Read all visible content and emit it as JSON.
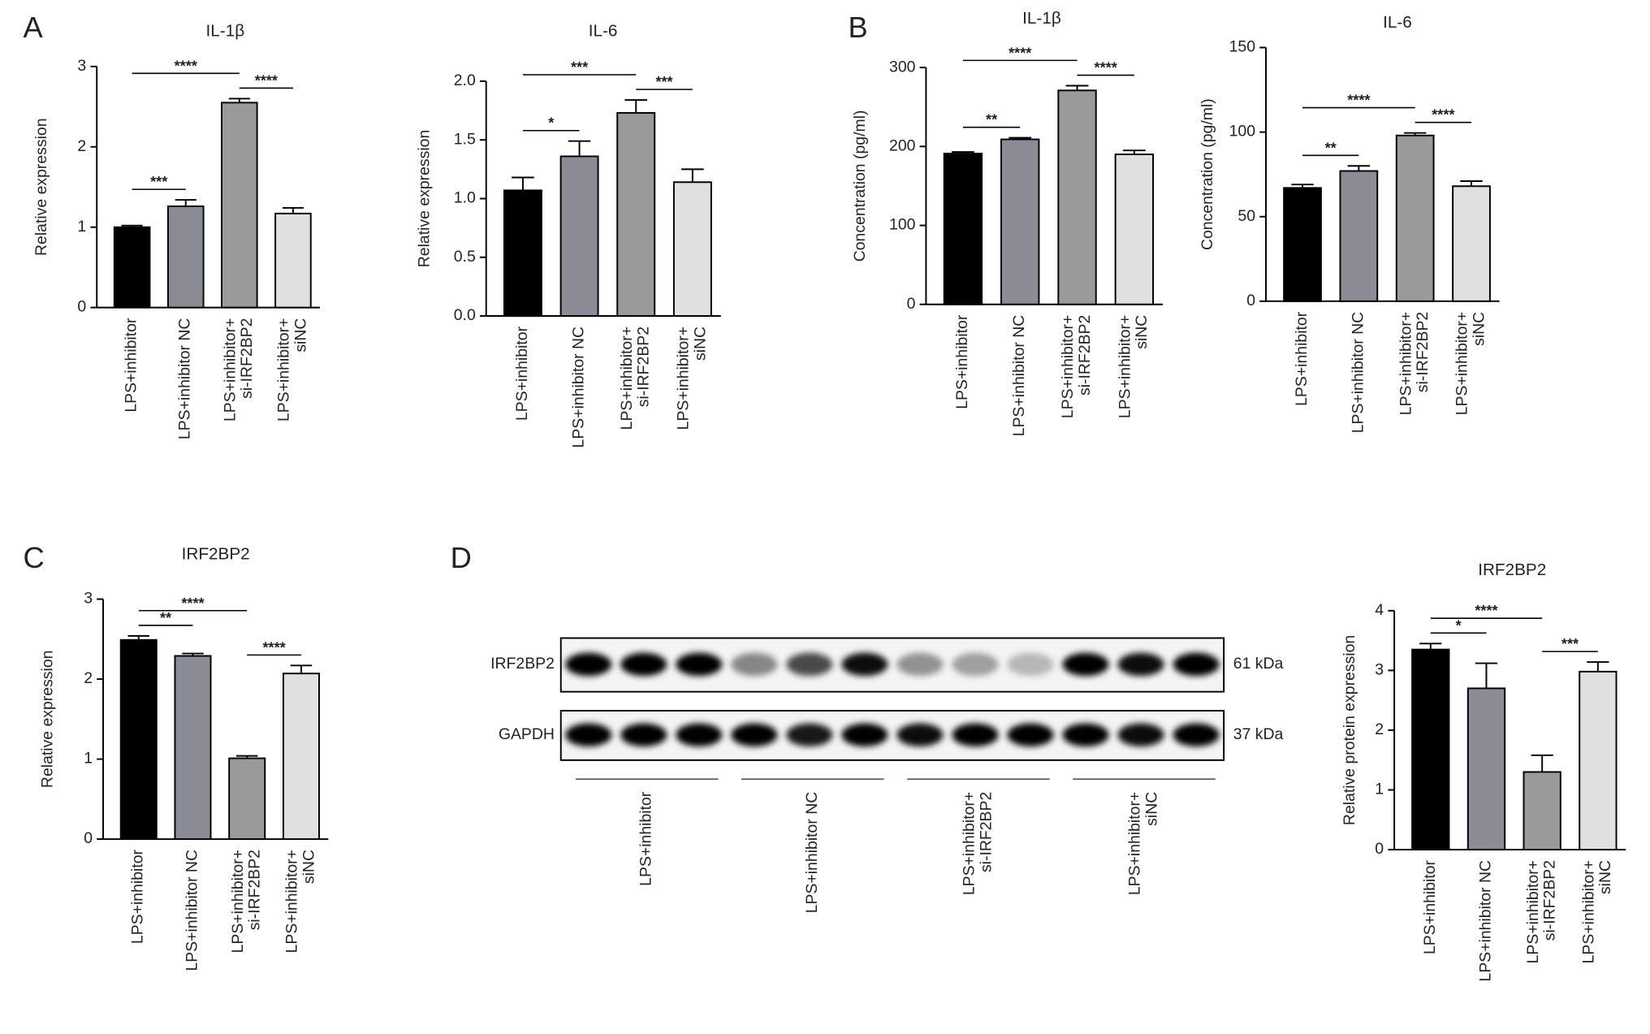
{
  "panel_labels": [
    "A",
    "B",
    "C",
    "D"
  ],
  "chart_data": [
    {
      "type": "bar",
      "title": "IL-1β",
      "ylabel": "Relative expression",
      "categories": [
        "LPS+inhibitor",
        "LPS+inhibitor NC",
        "LPS+inhibitor+\nsi-IRF2BP2",
        "LPS+inhibitor+\nsiNC"
      ],
      "values": [
        1.0,
        1.26,
        2.55,
        1.17
      ],
      "errors": [
        0.02,
        0.08,
        0.05,
        0.07
      ],
      "colors": [
        "#000000",
        "#8c8c96",
        "#9a9a9a",
        "#e0e0e0"
      ],
      "ylim": [
        0,
        3
      ],
      "yticks": [
        0,
        1,
        2,
        3
      ],
      "significance": [
        {
          "from": 0,
          "to": 1,
          "label": "***"
        },
        {
          "from": 0,
          "to": 2,
          "label": "****"
        },
        {
          "from": 2,
          "to": 3,
          "label": "****"
        }
      ]
    },
    {
      "type": "bar",
      "title": "IL-6",
      "ylabel": "Relative expression",
      "categories": [
        "LPS+inhibitor",
        "LPS+inhibitor NC",
        "LPS+inhibitor+\nsi-IRF2BP2",
        "LPS+inhibitor+\nsiNC"
      ],
      "values": [
        1.07,
        1.36,
        1.73,
        1.14
      ],
      "errors": [
        0.11,
        0.13,
        0.11,
        0.11
      ],
      "colors": [
        "#000000",
        "#8c8c96",
        "#9a9a9a",
        "#e0e0e0"
      ],
      "ylim": [
        0,
        2
      ],
      "yticks": [
        {
          "value": 0,
          "label": "0.0"
        },
        0.5,
        {
          "value": 1,
          "label": "1.0"
        },
        1.5,
        {
          "value": 2,
          "label": "2.0"
        }
      ],
      "significance": [
        {
          "from": 0,
          "to": 1,
          "label": "*"
        },
        {
          "from": 0,
          "to": 2,
          "label": "***"
        },
        {
          "from": 2,
          "to": 3,
          "label": "***"
        }
      ]
    },
    {
      "type": "bar",
      "title": "IL-1β",
      "ylabel": "Concentration (pg/ml)",
      "categories": [
        "LPS+inhibitor",
        "LPS+inhibitor NC",
        "LPS+inhibitor+\nsi-IRF2BP2",
        "LPS+inhibitor+\nsiNC"
      ],
      "values": [
        191,
        209,
        271,
        190
      ],
      "errors": [
        2,
        2,
        6,
        5
      ],
      "colors": [
        "#000000",
        "#8c8c96",
        "#9a9a9a",
        "#e0e0e0"
      ],
      "ylim": [
        0,
        300
      ],
      "yticks": [
        0,
        100,
        200,
        300
      ],
      "significance": [
        {
          "from": 0,
          "to": 1,
          "label": "**"
        },
        {
          "from": 0,
          "to": 2,
          "label": "****"
        },
        {
          "from": 2,
          "to": 3,
          "label": "****"
        }
      ]
    },
    {
      "type": "bar",
      "title": "IL-6",
      "ylabel": "Concentration (pg/ml)",
      "categories": [
        "LPS+inhibitor",
        "LPS+inhibitor NC",
        "LPS+inhibitor+\nsi-IRF2BP2",
        "LPS+inhibitor+\nsiNC"
      ],
      "values": [
        67,
        77,
        98,
        68
      ],
      "errors": [
        2,
        3,
        1.5,
        3
      ],
      "colors": [
        "#000000",
        "#8c8c96",
        "#9a9a9a",
        "#e0e0e0"
      ],
      "ylim": [
        0,
        150
      ],
      "yticks": [
        0,
        50,
        100,
        150
      ],
      "significance": [
        {
          "from": 0,
          "to": 1,
          "label": "**"
        },
        {
          "from": 0,
          "to": 2,
          "label": "****"
        },
        {
          "from": 2,
          "to": 3,
          "label": "****"
        }
      ]
    },
    {
      "type": "bar",
      "title": "IRF2BP2",
      "ylabel": "Relative expression",
      "categories": [
        "LPS+inhibitor",
        "LPS+inhibitor NC",
        "LPS+inhibitor+\nsi-IRF2BP2",
        "LPS+inhibitor+\nsiNC"
      ],
      "values": [
        2.49,
        2.29,
        1.01,
        2.07
      ],
      "errors": [
        0.05,
        0.03,
        0.03,
        0.1
      ],
      "colors": [
        "#000000",
        "#8c8c96",
        "#9a9a9a",
        "#e0e0e0"
      ],
      "ylim": [
        0,
        3
      ],
      "yticks": [
        0,
        1,
        2,
        3
      ],
      "significance": [
        {
          "from": 0,
          "to": 1,
          "label": "**"
        },
        {
          "from": 0,
          "to": 2,
          "label": "****"
        },
        {
          "from": 2,
          "to": 3,
          "label": "****"
        }
      ]
    },
    {
      "type": "bar",
      "title": "IRF2BP2",
      "ylabel": "Relative protein expression",
      "categories": [
        "LPS+inhibitor",
        "LPS+inhibitor NC",
        "LPS+inhibitor+\nsi-IRF2BP2",
        "LPS+inhibitor+\nsiNC"
      ],
      "values": [
        3.35,
        2.7,
        1.3,
        2.98
      ],
      "errors": [
        0.1,
        0.42,
        0.28,
        0.16
      ],
      "colors": [
        "#000000",
        "#8c8c96",
        "#9a9a9a",
        "#e0e0e0"
      ],
      "ylim": [
        0,
        4
      ],
      "yticks": [
        0,
        1,
        2,
        3,
        4
      ],
      "significance": [
        {
          "from": 0,
          "to": 1,
          "label": "*"
        },
        {
          "from": 0,
          "to": 2,
          "label": "****"
        },
        {
          "from": 2,
          "to": 3,
          "label": "***"
        }
      ]
    }
  ],
  "blot": {
    "bands": [
      "IRF2BP2",
      "GAPDH"
    ],
    "sizes": [
      "61 kDa",
      "37 kDa"
    ],
    "groups": [
      "LPS+inhibitor",
      "LPS+inhibitor NC",
      "LPS+inhibitor+\nsi-IRF2BP2",
      "LPS+inhibitor+\nsiNC"
    ]
  }
}
